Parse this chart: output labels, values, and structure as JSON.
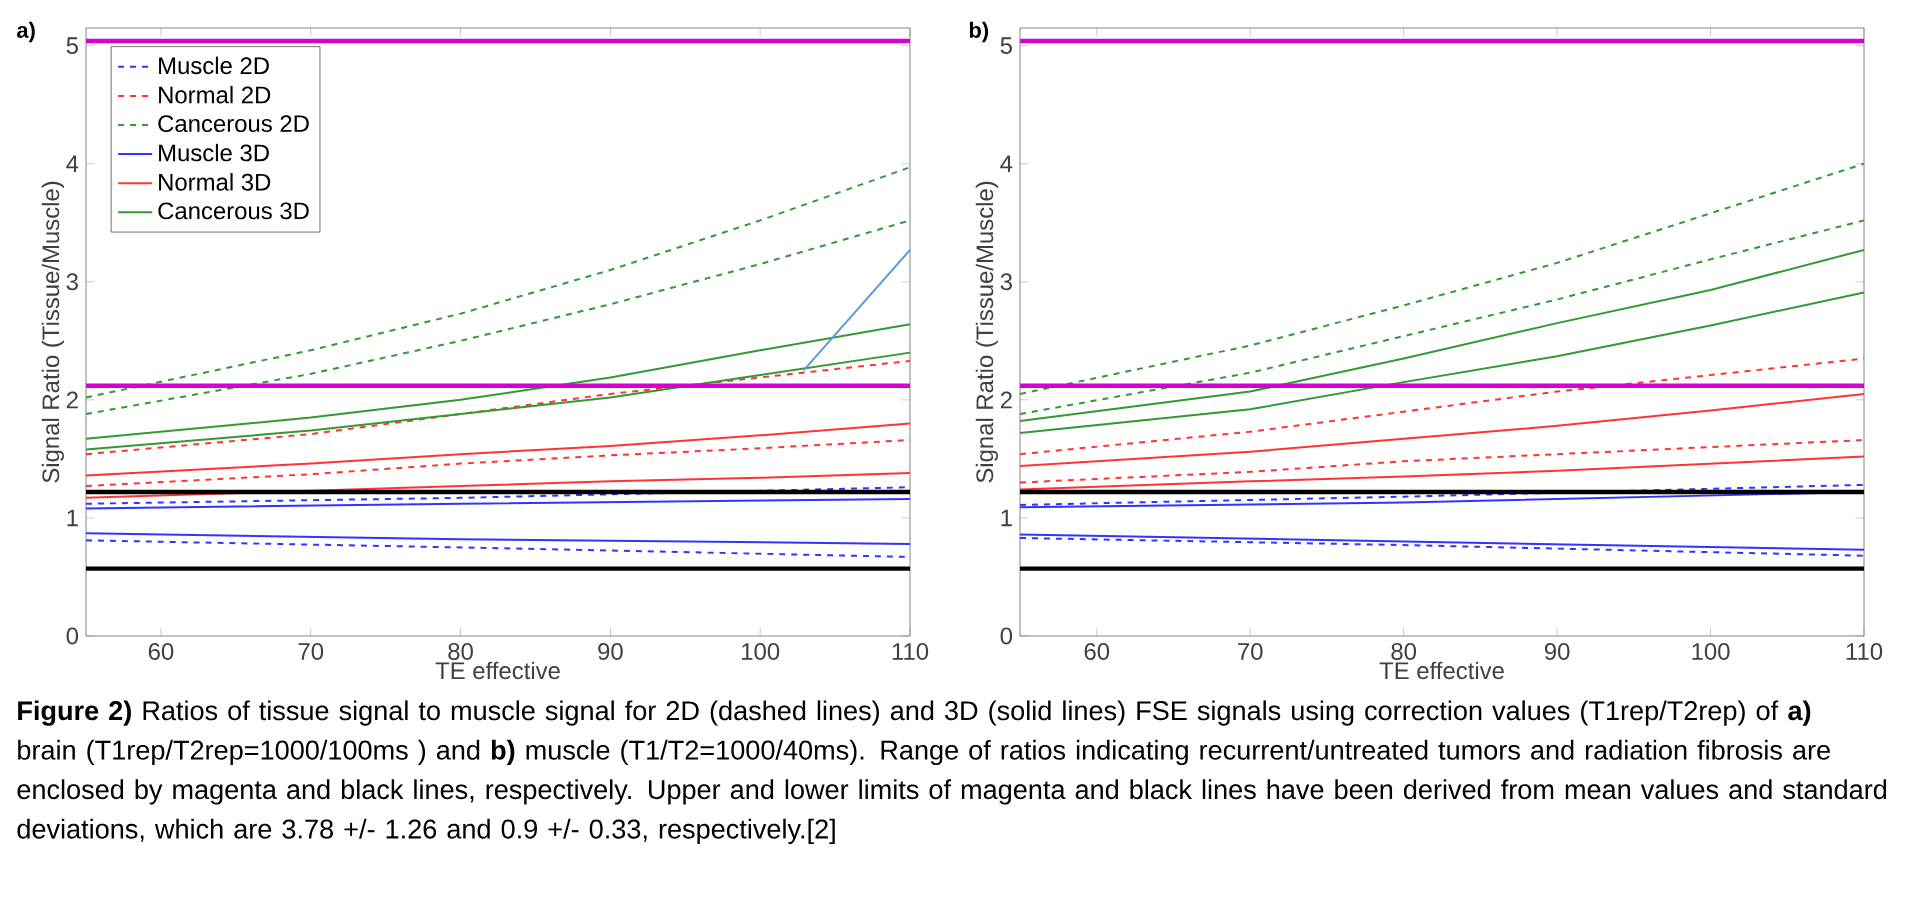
{
  "chart_data": [
    {
      "type": "line",
      "xlabel": "TE effective",
      "ylabel": "Signal Ratio (Tissue/Muscle)",
      "xlim": [
        55,
        110
      ],
      "ylim": [
        0,
        5.15
      ],
      "xticks": [
        60,
        70,
        80,
        90,
        100,
        110
      ],
      "yticks": [
        0,
        1,
        2,
        3,
        4,
        5
      ],
      "legend": "top left",
      "annotations": [
        "a)",
        "**Figure 2)** Ratios of tissue signal to muscle signal for 2D (dashed lines) and 3D (solid lines) FSE signals using correction values (T1rep/T2rep) of  **a)** brain (T1rep/T2rep=1000/100ms ) and **b)** muscle (T1/T2=1000/40ms). Range of ratios indicating recurrent/untreated tumors and radiation fibrosis are enclosed by magenta and black lines, respectively. Upper and lower limits of magenta and black lines have been derived from mean values and standard deviations, which are 3.78 +/- 1.26 and 0.9 +/- 0.33, respectively.[2]"
      ],
      "ref_lines": [
        {
          "axis": "y",
          "value": 5.04,
          "color": "#d400d4"
        },
        {
          "axis": "y",
          "value": 2.12,
          "color": "#d400d4"
        },
        {
          "axis": "y",
          "value": 1.22,
          "color": "#000000"
        },
        {
          "axis": "y",
          "value": 0.57,
          "color": "#000000"
        }
      ],
      "series": [
        {
          "name": "Muscle 2D",
          "color": "#3333ff",
          "line_style": "dashed",
          "x": [
            55,
            80,
            110
          ],
          "values": [
            1.12,
            1.17,
            1.26
          ]
        },
        {
          "name": "Normal 2D",
          "color": "#ff3333",
          "line_style": "dashed",
          "x": [
            55,
            70,
            80,
            90,
            100,
            110
          ],
          "values": [
            1.54,
            1.71,
            1.88,
            2.05,
            2.19,
            2.33
          ]
        },
        {
          "name": "Cancerous 2D",
          "color": "#339933",
          "line_style": "dashed",
          "x": [
            55,
            70,
            80,
            90,
            100,
            110
          ],
          "values": [
            2.02,
            2.42,
            2.73,
            3.1,
            3.52,
            3.97
          ]
        },
        {
          "name": "Muscle 3D",
          "color": "#3333ff",
          "line_style": "solid",
          "x": [
            55,
            80,
            110
          ],
          "values": [
            1.08,
            1.12,
            1.16
          ]
        },
        {
          "name": "Normal 3D",
          "color": "#ff3333",
          "line_style": "solid",
          "x": [
            55,
            70,
            80,
            90,
            100,
            110
          ],
          "values": [
            1.36,
            1.46,
            1.54,
            1.61,
            1.7,
            1.8
          ]
        },
        {
          "name": "Cancerous 3D",
          "color": "#339933",
          "line_style": "solid",
          "x": [
            55,
            70,
            80,
            90,
            100,
            110
          ],
          "values": [
            1.67,
            1.85,
            2.0,
            2.19,
            2.42,
            2.64
          ]
        },
        {
          "color": "#3333ff",
          "line_style": "dashed",
          "x": [
            55,
            80,
            110
          ],
          "values": [
            0.81,
            0.75,
            0.67
          ]
        },
        {
          "color": "#ff3333",
          "line_style": "dashed",
          "x": [
            55,
            70,
            80,
            90,
            100,
            110
          ],
          "values": [
            1.27,
            1.37,
            1.46,
            1.53,
            1.59,
            1.66
          ]
        },
        {
          "color": "#339933",
          "line_style": "dashed",
          "x": [
            55,
            70,
            80,
            90,
            100,
            110
          ],
          "values": [
            1.88,
            2.22,
            2.5,
            2.81,
            3.15,
            3.52
          ]
        },
        {
          "color": "#3333ff",
          "line_style": "solid",
          "x": [
            55,
            80,
            110
          ],
          "values": [
            0.87,
            0.82,
            0.78
          ]
        },
        {
          "color": "#ff3333",
          "line_style": "solid",
          "x": [
            55,
            70,
            80,
            90,
            100,
            110
          ],
          "values": [
            1.17,
            1.23,
            1.27,
            1.31,
            1.34,
            1.38
          ]
        },
        {
          "color": "#339933",
          "line_style": "solid",
          "x": [
            55,
            70,
            80,
            90,
            100,
            110
          ],
          "values": [
            1.58,
            1.74,
            1.88,
            2.02,
            2.21,
            2.4
          ]
        },
        {
          "color": "#5b9bd5",
          "line_style": "solid",
          "x": [
            102.9,
            110
          ],
          "values": [
            2.25,
            3.27
          ]
        }
      ]
    },
    {
      "type": "line",
      "xlabel": "TE effective",
      "ylabel": "Signal Ratio (Tissue/Muscle)",
      "xlim": [
        55,
        110
      ],
      "ylim": [
        0,
        5.15
      ],
      "xticks": [
        60,
        70,
        80,
        90,
        100,
        110
      ],
      "yticks": [
        0,
        1,
        2,
        3,
        4,
        5
      ],
      "annotations": [
        "b)"
      ],
      "ref_lines": [
        {
          "axis": "y",
          "value": 5.04,
          "color": "#d400d4"
        },
        {
          "axis": "y",
          "value": 2.12,
          "color": "#d400d4"
        },
        {
          "axis": "y",
          "value": 1.22,
          "color": "#000000"
        },
        {
          "axis": "y",
          "value": 0.57,
          "color": "#000000"
        }
      ],
      "series": [
        {
          "color": "#3333ff",
          "line_style": "dashed",
          "x": [
            55,
            80,
            110
          ],
          "values": [
            1.11,
            1.18,
            1.28
          ]
        },
        {
          "color": "#3333ff",
          "line_style": "dashed",
          "x": [
            55,
            80,
            110
          ],
          "values": [
            0.83,
            0.77,
            0.68
          ]
        },
        {
          "color": "#3333ff",
          "line_style": "solid",
          "x": [
            55,
            80,
            110
          ],
          "values": [
            1.09,
            1.13,
            1.22
          ]
        },
        {
          "color": "#3333ff",
          "line_style": "solid",
          "x": [
            55,
            80,
            110
          ],
          "values": [
            0.86,
            0.8,
            0.73
          ]
        },
        {
          "color": "#ff3333",
          "line_style": "dashed",
          "x": [
            55,
            70,
            80,
            90,
            100,
            110
          ],
          "values": [
            1.54,
            1.73,
            1.9,
            2.07,
            2.21,
            2.35
          ]
        },
        {
          "color": "#ff3333",
          "line_style": "dashed",
          "x": [
            55,
            70,
            80,
            90,
            100,
            110
          ],
          "values": [
            1.3,
            1.39,
            1.48,
            1.54,
            1.6,
            1.66
          ]
        },
        {
          "color": "#ff3333",
          "line_style": "solid",
          "x": [
            55,
            70,
            80,
            90,
            100,
            110
          ],
          "values": [
            1.44,
            1.56,
            1.67,
            1.78,
            1.91,
            2.05
          ]
        },
        {
          "color": "#ff3333",
          "line_style": "solid",
          "x": [
            55,
            70,
            80,
            90,
            100,
            110
          ],
          "values": [
            1.24,
            1.31,
            1.35,
            1.4,
            1.46,
            1.52
          ]
        },
        {
          "color": "#339933",
          "line_style": "dashed",
          "x": [
            55,
            70,
            80,
            90,
            100,
            110
          ],
          "values": [
            2.05,
            2.46,
            2.8,
            3.16,
            3.58,
            4.0
          ]
        },
        {
          "color": "#339933",
          "line_style": "dashed",
          "x": [
            55,
            70,
            80,
            90,
            100,
            110
          ],
          "values": [
            1.88,
            2.23,
            2.54,
            2.85,
            3.19,
            3.52
          ]
        },
        {
          "color": "#339933",
          "line_style": "solid",
          "x": [
            55,
            70,
            80,
            90,
            100,
            110
          ],
          "values": [
            1.82,
            2.07,
            2.35,
            2.65,
            2.93,
            3.27
          ]
        },
        {
          "color": "#339933",
          "line_style": "solid",
          "x": [
            55,
            70,
            80,
            90,
            100,
            110
          ],
          "values": [
            1.72,
            1.92,
            2.15,
            2.37,
            2.63,
            2.91
          ]
        }
      ]
    }
  ]
}
